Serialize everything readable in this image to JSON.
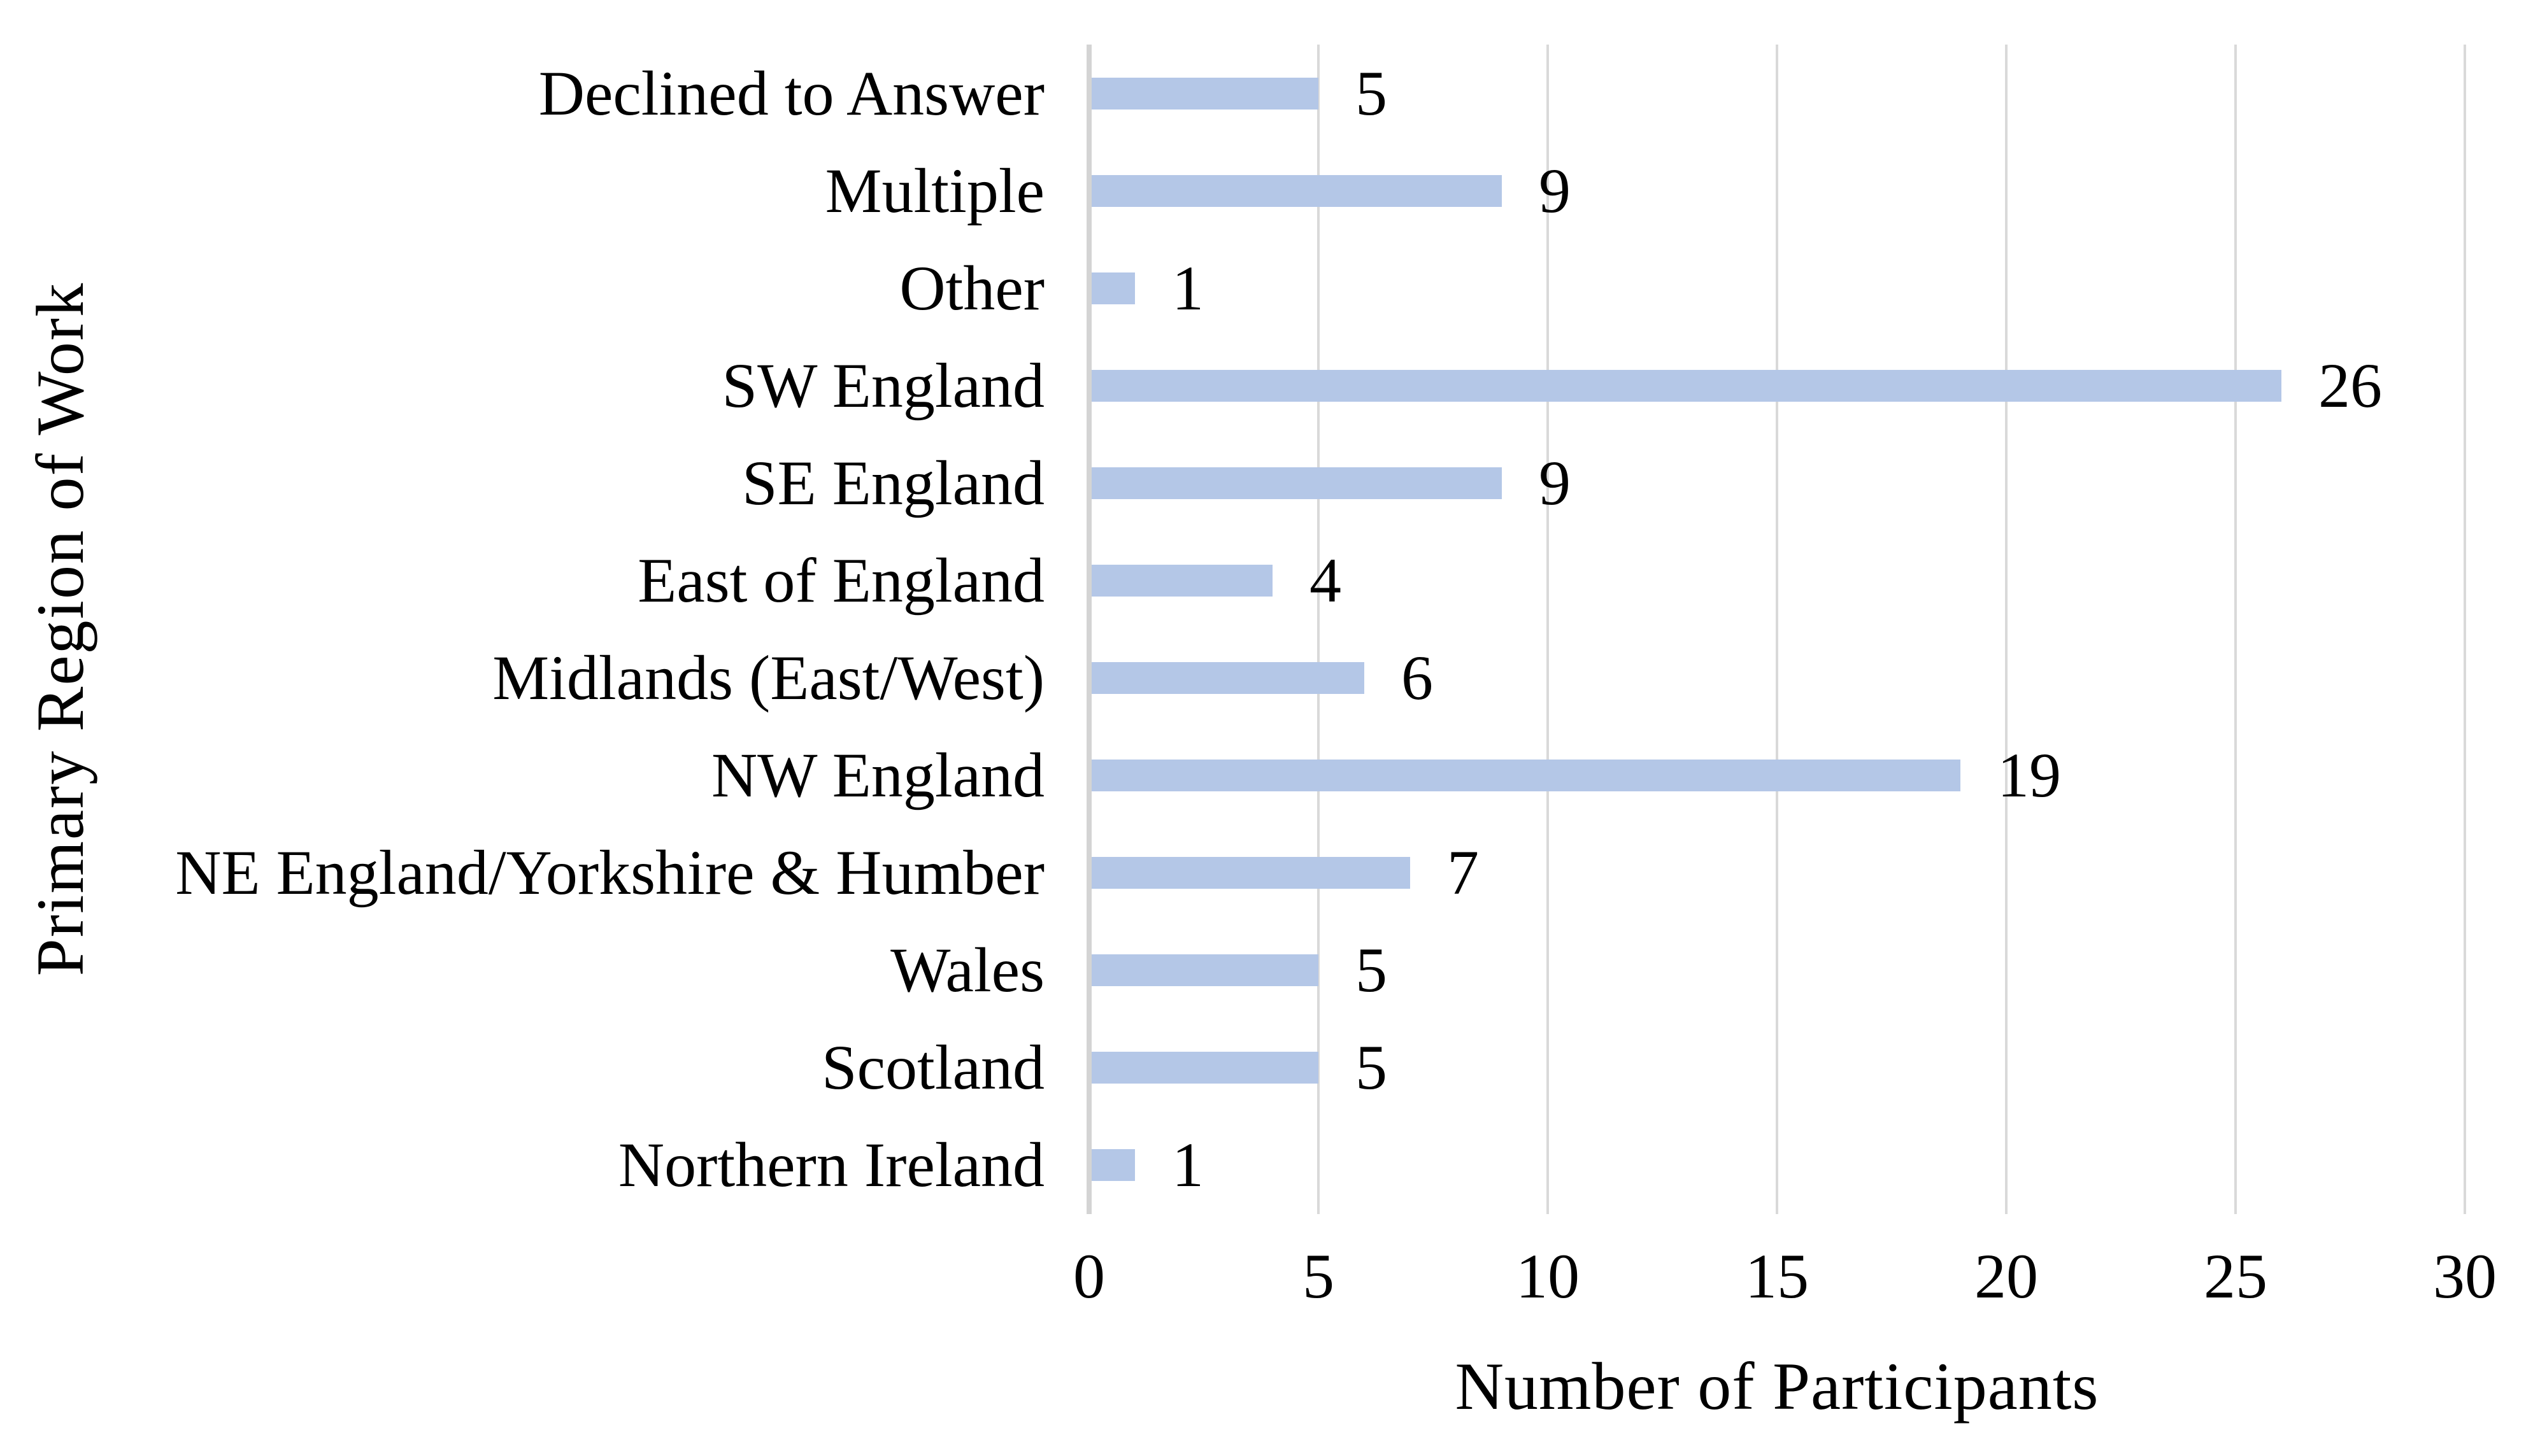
{
  "chart_data": {
    "type": "bar",
    "orientation": "horizontal",
    "title": "",
    "xlabel": "Number of Participants",
    "ylabel": "Primary Region of Work",
    "categories": [
      "Declined to Answer",
      "Multiple",
      "Other",
      "SW England",
      "SE England",
      "East of England",
      "Midlands (East/West)",
      "NW England",
      "NE England/Yorkshire & Humber",
      "Wales",
      "Scotland",
      "Northern Ireland"
    ],
    "values": [
      5,
      9,
      1,
      26,
      9,
      4,
      6,
      19,
      7,
      5,
      5,
      1
    ],
    "data_labels": [
      5,
      9,
      1,
      26,
      9,
      4,
      6,
      19,
      7,
      5,
      5,
      1
    ],
    "xlim": [
      0,
      30
    ],
    "xticks": [
      0,
      5,
      10,
      15,
      20,
      25,
      30
    ],
    "grid": "vertical",
    "legend": "none",
    "colors": {
      "bar": "#b4c7e7",
      "gridline": "#d9d9d9",
      "axis_line": "#d4d4d4",
      "text": "#000000",
      "background": "#ffffff"
    }
  }
}
